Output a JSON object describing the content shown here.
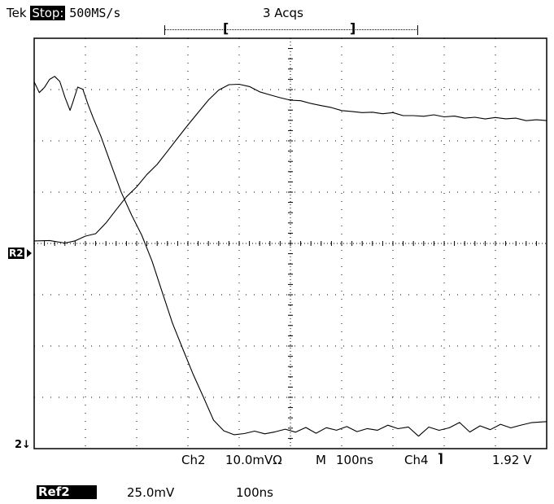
{
  "status_bar": {
    "brand": "Tek",
    "run_state": "Stop:",
    "sample_rate": "500MS/s",
    "acquisitions": "3 Acqs",
    "bracket_left": "[",
    "bracket_right": "]"
  },
  "markers": {
    "ref_marker": "R2",
    "channel_marker": "2",
    "channel_arrow": "↓"
  },
  "readout": {
    "ch2_label": "Ch2",
    "ch2_scale": "10.0mVΩ",
    "timebase_label": "M",
    "timebase": "100ns",
    "trigger_source": "Ch4",
    "trigger_slope_icon": "falling-edge-icon",
    "trigger_slope_glyph": "⌉",
    "trigger_level": "1.92 V"
  },
  "ref_readout": {
    "label": "Ref2",
    "scale": "25.0mV",
    "timebase": "100ns"
  },
  "colors": {
    "background": "#ffffff",
    "trace": "#000000",
    "grid": "#000000"
  },
  "chart_data": {
    "type": "line",
    "grid": true,
    "x_divisions": 10,
    "y_divisions": 8,
    "xlim": [
      0,
      10
    ],
    "ylim": [
      -4,
      4
    ],
    "series": [
      {
        "x": [
          0,
          0.1,
          0.2,
          0.3,
          0.4,
          0.5,
          0.6,
          0.7,
          0.75,
          0.85,
          0.95,
          1.05,
          1.15,
          1.3,
          1.5,
          1.7,
          1.9,
          2.1,
          2.3,
          2.5,
          2.7,
          2.9,
          3.1,
          3.3,
          3.5,
          3.7,
          3.9,
          4.1,
          4.3,
          4.5,
          4.7,
          4.9,
          5.1,
          5.3,
          5.5,
          5.7,
          5.9,
          6.1,
          6.3,
          6.5,
          6.7,
          6.9,
          7.1,
          7.3,
          7.5,
          7.7,
          7.9,
          8.1,
          8.3,
          8.5,
          8.7,
          8.9,
          9.1,
          9.3,
          9.5,
          9.7,
          10
        ],
        "y": [
          3.15,
          2.95,
          3.05,
          3.2,
          3.25,
          3.15,
          2.85,
          2.6,
          2.75,
          3.05,
          3.0,
          2.7,
          2.45,
          2.1,
          1.55,
          1.0,
          0.55,
          0.15,
          -0.35,
          -0.95,
          -1.55,
          -2.05,
          -2.55,
          -3.0,
          -3.45,
          -3.65,
          -3.72,
          -3.7,
          -3.66,
          -3.72,
          -3.68,
          -3.62,
          -3.67,
          -3.58,
          -3.7,
          -3.6,
          -3.65,
          -3.57,
          -3.66,
          -3.6,
          -3.64,
          -3.55,
          -3.62,
          -3.58,
          -3.75,
          -3.57,
          -3.64,
          -3.6,
          -3.5,
          -3.68,
          -3.55,
          -3.62,
          -3.52,
          -3.6,
          -3.55,
          -3.5,
          -3.47
        ]
      },
      {
        "x": [
          0,
          0.3,
          0.6,
          0.8,
          1.0,
          1.2,
          1.4,
          1.6,
          1.8,
          2.0,
          2.2,
          2.4,
          2.6,
          2.8,
          3.0,
          3.2,
          3.4,
          3.6,
          3.8,
          4.0,
          4.2,
          4.4,
          4.6,
          4.8,
          5.0,
          5.2,
          5.4,
          5.6,
          5.8,
          6.0,
          6.2,
          6.4,
          6.6,
          6.8,
          7.0,
          7.2,
          7.4,
          7.6,
          7.8,
          8.0,
          8.2,
          8.4,
          8.6,
          8.8,
          9.0,
          9.2,
          9.4,
          9.6,
          9.8,
          10
        ],
        "y": [
          0.05,
          0.05,
          0.0,
          0.05,
          0.15,
          0.2,
          0.4,
          0.65,
          0.9,
          1.1,
          1.35,
          1.55,
          1.8,
          2.05,
          2.3,
          2.55,
          2.8,
          3.0,
          3.1,
          3.1,
          3.05,
          2.95,
          2.9,
          2.85,
          2.8,
          2.78,
          2.72,
          2.68,
          2.65,
          2.6,
          2.58,
          2.55,
          2.55,
          2.52,
          2.55,
          2.5,
          2.5,
          2.48,
          2.5,
          2.46,
          2.48,
          2.45,
          2.47,
          2.43,
          2.45,
          2.42,
          2.44,
          2.4,
          2.42,
          2.4
        ]
      }
    ]
  }
}
